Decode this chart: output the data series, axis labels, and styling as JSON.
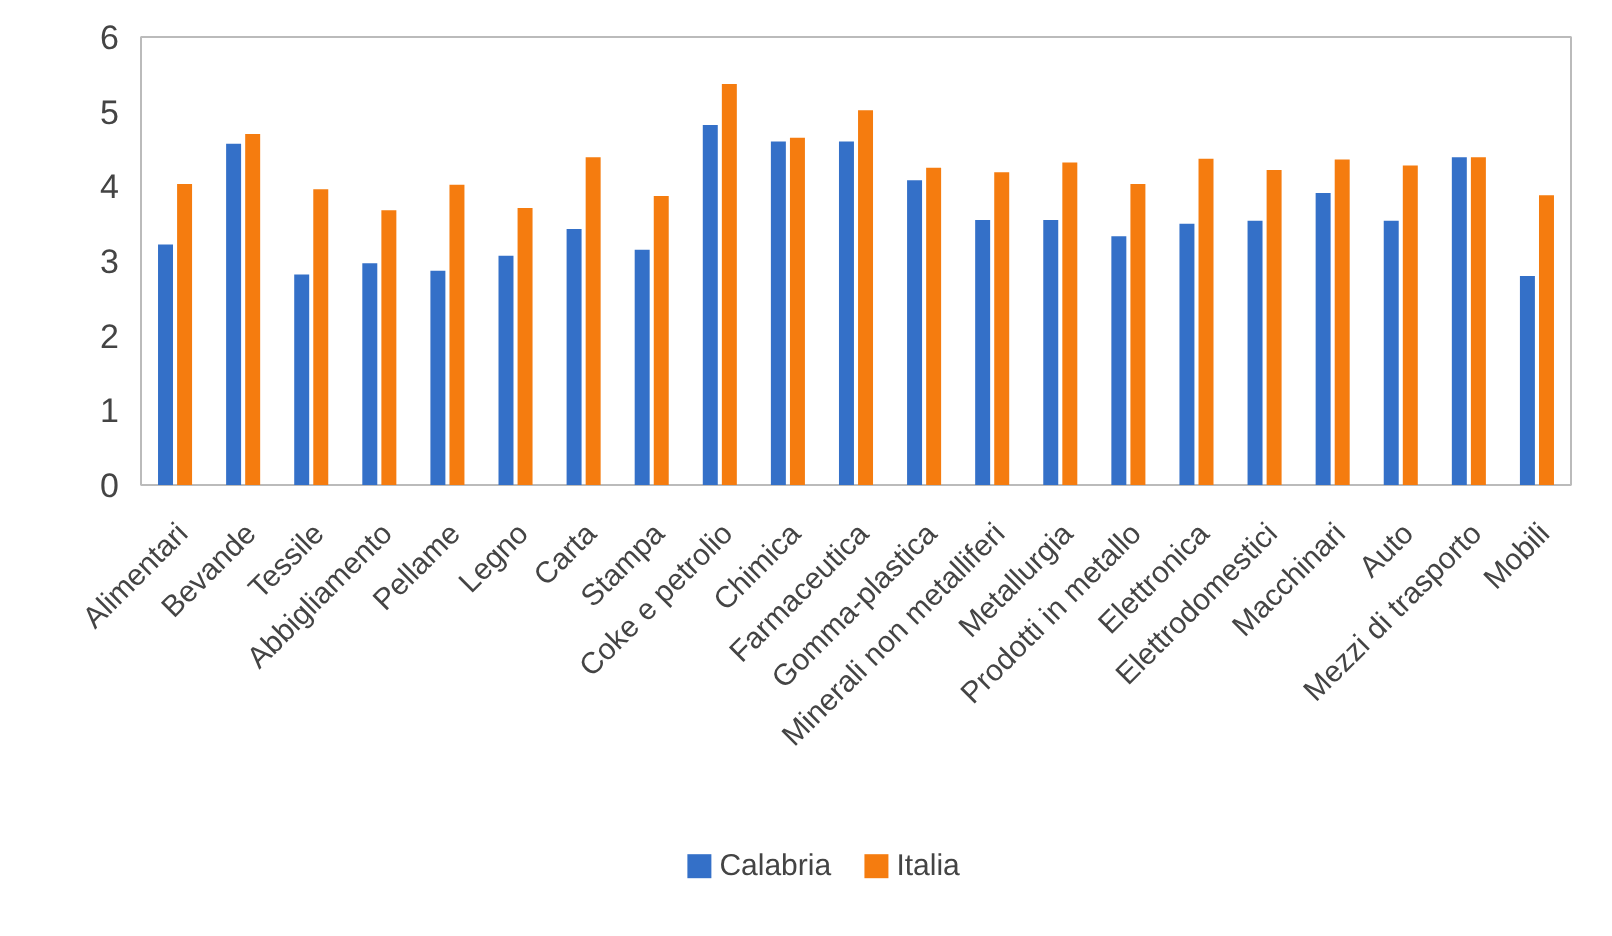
{
  "chart_data": {
    "type": "bar",
    "categories": [
      "Alimentari",
      "Bevande",
      "Tessile",
      "Abbigliamento",
      "Pellame",
      "Legno",
      "Carta",
      "Stampa",
      "Coke e petrolio",
      "Chimica",
      "Farmaceutica",
      "Gomma-plastica",
      "Minerali non metalliferi",
      "Metallurgia",
      "Prodotti in metallo",
      "Elettronica",
      "Elettrodomestici",
      "Macchinari",
      "Auto",
      "Mezzi di trasporto",
      "Mobili"
    ],
    "series": [
      {
        "name": "Calabria",
        "color": "#3470c8",
        "values": [
          3.22,
          4.57,
          2.82,
          2.97,
          2.87,
          3.07,
          3.43,
          3.15,
          4.82,
          4.6,
          4.6,
          4.08,
          3.55,
          3.55,
          3.33,
          3.5,
          3.54,
          3.91,
          3.54,
          4.39,
          2.8
        ]
      },
      {
        "name": "Italia",
        "color": "#f57c0f",
        "values": [
          4.03,
          4.7,
          3.96,
          3.68,
          4.02,
          3.71,
          4.39,
          3.87,
          5.37,
          4.65,
          5.02,
          4.25,
          4.19,
          4.32,
          4.03,
          4.37,
          4.22,
          4.36,
          4.28,
          4.39,
          3.88
        ]
      }
    ],
    "ylim": [
      0,
      6
    ],
    "yticks": [
      0,
      1,
      2,
      3,
      4,
      5,
      6
    ],
    "grid": false,
    "legend": "bottom"
  }
}
